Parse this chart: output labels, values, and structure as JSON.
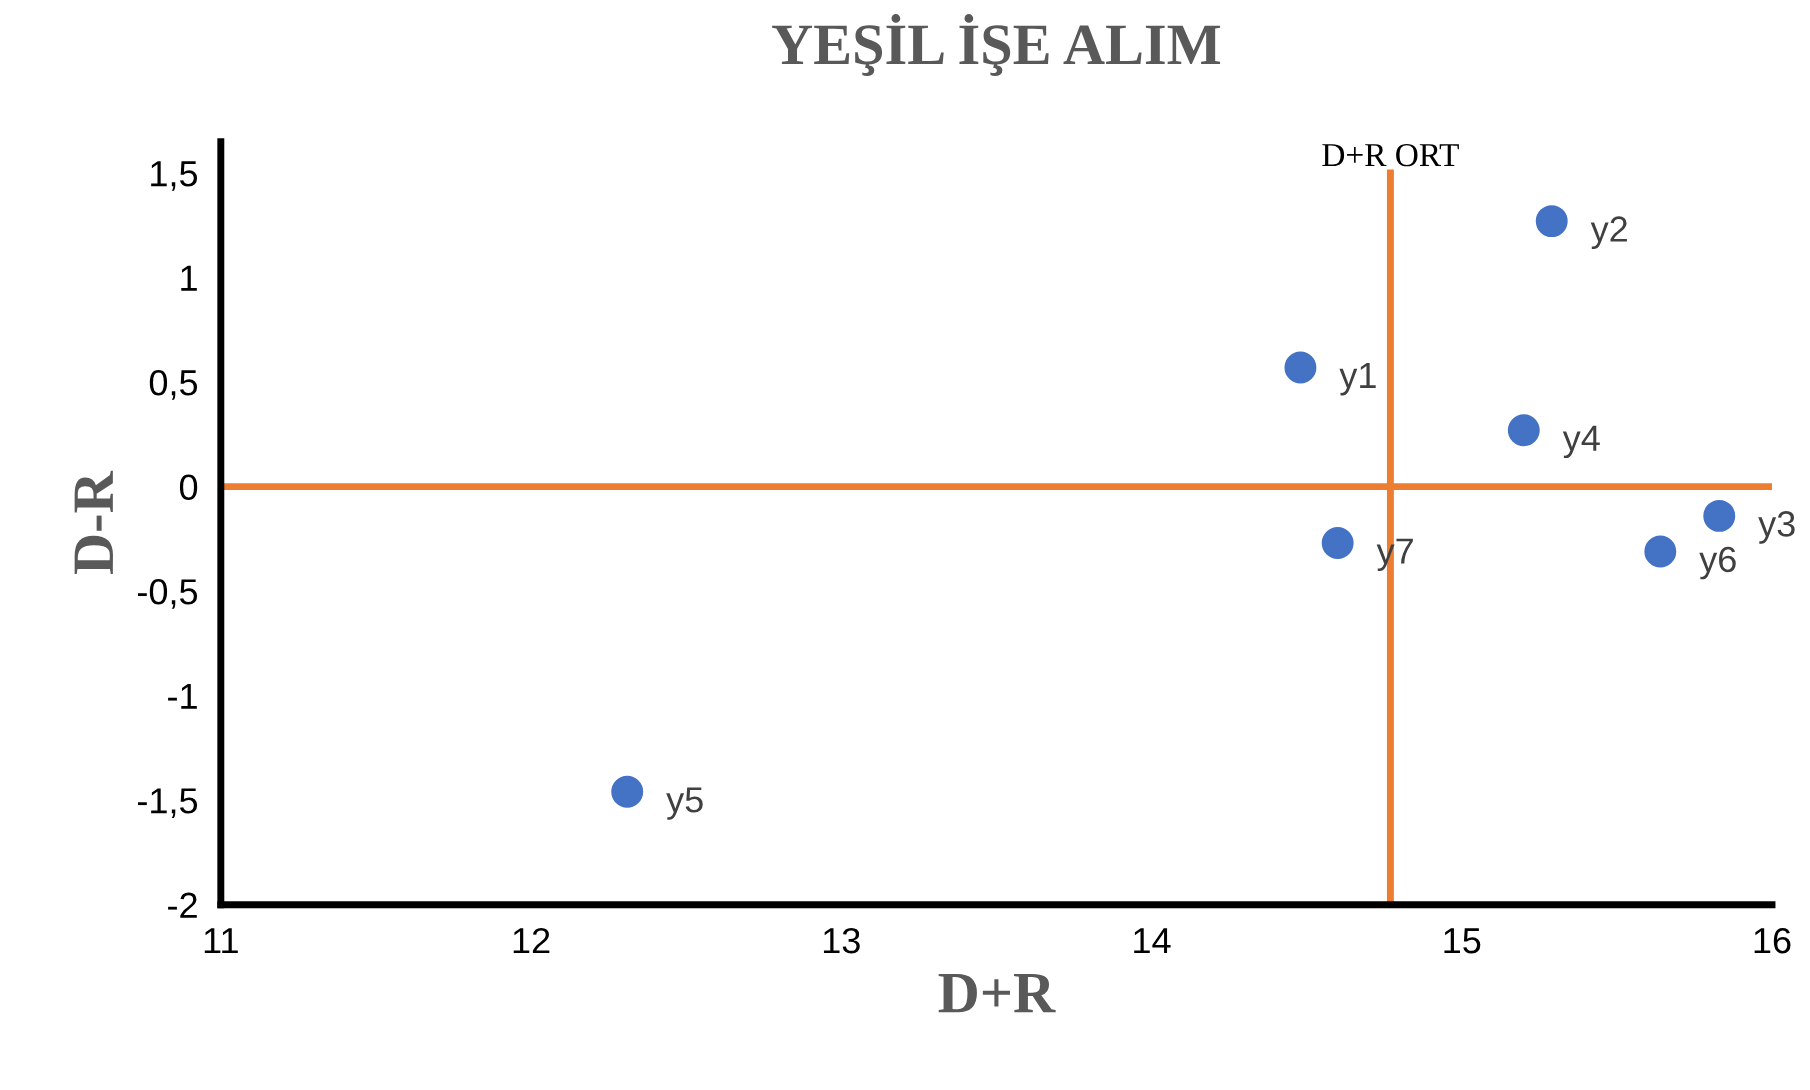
{
  "chart_data": {
    "type": "scatter",
    "title": "YEŞİL İŞE ALIM",
    "xlabel": "D+R",
    "ylabel": "D-R",
    "x": [
      14.48,
      15.29,
      15.83,
      15.2,
      12.31,
      15.64,
      14.6
    ],
    "series": [
      {
        "color": "#4472c4",
        "values": [
          0.57,
          1.27,
          -0.14,
          0.27,
          -1.46,
          -0.31,
          -0.27
        ]
      }
    ],
    "annotations": [
      {
        "text": "y1",
        "x": 14.48,
        "y": 0.57
      },
      {
        "text": "y2",
        "x": 15.29,
        "y": 1.27
      },
      {
        "text": "y3",
        "x": 15.83,
        "y": -0.14
      },
      {
        "text": "y4",
        "x": 15.2,
        "y": 0.27
      },
      {
        "text": "y5",
        "x": 12.31,
        "y": -1.46
      },
      {
        "text": "y6",
        "x": 15.64,
        "y": -0.31
      },
      {
        "text": "y7",
        "x": 14.6,
        "y": -0.27
      }
    ],
    "ref_lines": [
      {
        "axis": "x",
        "value": 14.77,
        "label": "D+R ORT",
        "color": "#ed7d31"
      },
      {
        "axis": "y",
        "value": 0,
        "color": "#ed7d31"
      }
    ],
    "xlim": [
      11,
      16
    ],
    "ylim": [
      -2,
      1.65
    ],
    "xticks": [
      11,
      12,
      13,
      14,
      15,
      16
    ],
    "yticks": [
      {
        "value": -2,
        "label": "-2"
      },
      {
        "value": -1.5,
        "label": "-1,5"
      },
      {
        "value": -1,
        "label": "-1"
      },
      {
        "value": -0.5,
        "label": "-0,5"
      },
      {
        "value": 0,
        "label": "0"
      },
      {
        "value": 0.5,
        "label": "0,5"
      },
      {
        "value": 1,
        "label": "1"
      },
      {
        "value": 1.5,
        "label": "1,5"
      }
    ],
    "marker": "circle",
    "grid": false,
    "legend": false
  }
}
